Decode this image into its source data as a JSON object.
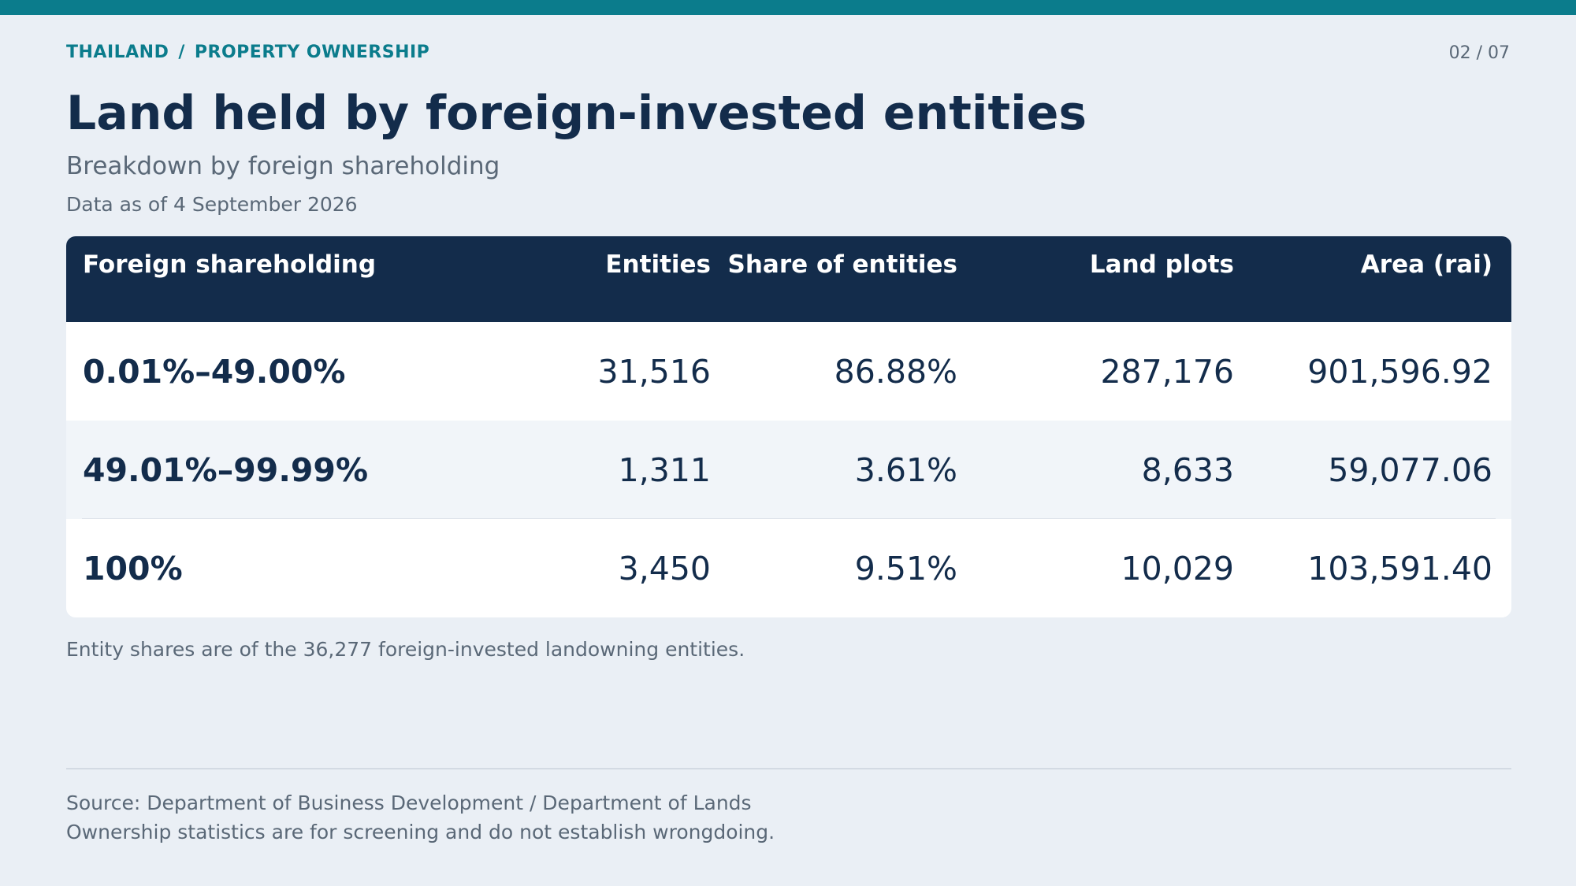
{
  "header": {
    "breadcrumb": [
      "THAILAND",
      "PROPERTY OWNERSHIP"
    ],
    "breadcrumb_separator": "/",
    "page_indicator": "02 / 07",
    "title": "Land held by foreign-invested entities",
    "subtitle": "Breakdown by foreign shareholding",
    "as_of": "Data as of 4 September 2026"
  },
  "table": {
    "columns": [
      "Foreign shareholding",
      "Entities",
      "Share of entities",
      "Land plots",
      "Area (rai)"
    ],
    "rows": [
      [
        "0.01%–49.00%",
        "31,516",
        "86.88%",
        "287,176",
        "901,596.92"
      ],
      [
        "49.01%–99.99%",
        "1,311",
        "3.61%",
        "8,633",
        "59,077.06"
      ],
      [
        "100%",
        "3,450",
        "9.51%",
        "10,029",
        "103,591.40"
      ]
    ]
  },
  "note": "Entity shares are of the 36,277 foreign-invested landowning entities.",
  "footer": {
    "source": "Source: Department of Business Development / Department of Lands",
    "disclaimer": "Ownership statistics are for screening and do not establish wrongdoing."
  },
  "colors": {
    "accent": "#0b7c8c",
    "navy": "#132c4b",
    "muted": "#5a6877",
    "background": "#eaeff5"
  }
}
